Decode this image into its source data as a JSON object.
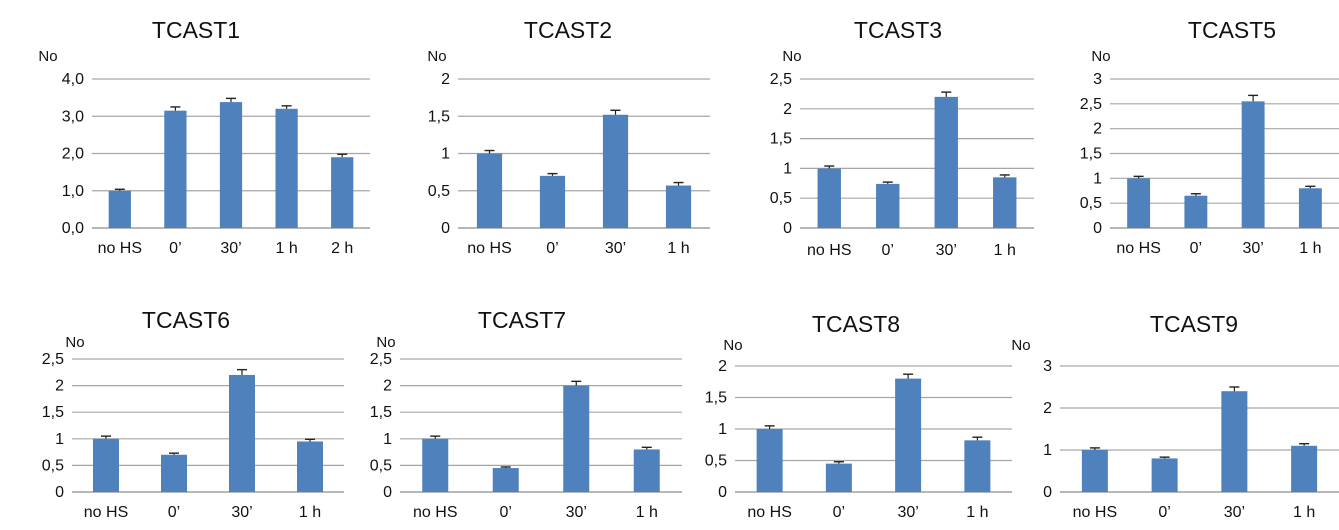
{
  "chart_data": [
    {
      "type": "bar",
      "title": "TCAST1",
      "ylabel": "No",
      "categories": [
        "no HS",
        "0’",
        "30’",
        "1 h",
        "2 h"
      ],
      "values": [
        1.0,
        3.15,
        3.38,
        3.2,
        1.9
      ],
      "errors": [
        0.04,
        0.1,
        0.1,
        0.08,
        0.08
      ],
      "ylim": [
        0,
        4
      ],
      "yticks": [
        "0,0",
        "1,0",
        "2,0",
        "3,0",
        "4,0"
      ],
      "grid": true,
      "color": "#4f81bd"
    },
    {
      "type": "bar",
      "title": "TCAST2",
      "ylabel": "No",
      "categories": [
        "no HS",
        "0’",
        "30’",
        "1 h"
      ],
      "values": [
        1.0,
        0.7,
        1.52,
        0.57
      ],
      "errors": [
        0.04,
        0.03,
        0.06,
        0.04
      ],
      "ylim": [
        0,
        2
      ],
      "yticks": [
        "0",
        "0,5",
        "1",
        "1,5",
        "2"
      ],
      "grid": true,
      "color": "#4f81bd"
    },
    {
      "type": "bar",
      "title": "TCAST3",
      "ylabel": "No",
      "categories": [
        "no HS",
        "0’",
        "30’",
        "1 h"
      ],
      "values": [
        1.0,
        0.74,
        2.2,
        0.85
      ],
      "errors": [
        0.04,
        0.03,
        0.08,
        0.04
      ],
      "ylim": [
        0,
        2.5
      ],
      "yticks": [
        "0",
        "0,5",
        "1",
        "1,5",
        "2",
        "2,5"
      ],
      "grid": true,
      "color": "#4f81bd"
    },
    {
      "type": "bar",
      "title": "TCAST5",
      "ylabel": "No",
      "categories": [
        "no HS",
        "0’",
        "30’",
        "1 h"
      ],
      "values": [
        1.0,
        0.65,
        2.55,
        0.8
      ],
      "errors": [
        0.04,
        0.04,
        0.12,
        0.04
      ],
      "ylim": [
        0,
        3
      ],
      "yticks": [
        "0",
        "0,5",
        "1",
        "1,5",
        "2",
        "2,5",
        "3"
      ],
      "grid": true,
      "color": "#4f81bd"
    },
    {
      "type": "bar",
      "title": "TCAST6",
      "ylabel": "No",
      "categories": [
        "no HS",
        "0’",
        "30’",
        "1 h"
      ],
      "values": [
        1.0,
        0.7,
        2.2,
        0.95
      ],
      "errors": [
        0.05,
        0.03,
        0.1,
        0.04
      ],
      "ylim": [
        0,
        2.5
      ],
      "yticks": [
        "0",
        "0,5",
        "1",
        "1,5",
        "2",
        "2,5"
      ],
      "grid": true,
      "color": "#4f81bd"
    },
    {
      "type": "bar",
      "title": "TCAST7",
      "ylabel": "No",
      "categories": [
        "no HS",
        "0’",
        "30’",
        "1 h"
      ],
      "values": [
        1.0,
        0.45,
        2.0,
        0.8
      ],
      "errors": [
        0.05,
        0.02,
        0.08,
        0.04
      ],
      "ylim": [
        0,
        2.5
      ],
      "yticks": [
        "0",
        "0,5",
        "1",
        "1,5",
        "2",
        "2,5"
      ],
      "grid": true,
      "color": "#4f81bd"
    },
    {
      "type": "bar",
      "title": "TCAST8",
      "ylabel": "No",
      "categories": [
        "no HS",
        "0’",
        "30’",
        "1 h"
      ],
      "values": [
        1.0,
        0.45,
        1.8,
        0.82
      ],
      "errors": [
        0.05,
        0.03,
        0.07,
        0.05
      ],
      "ylim": [
        0,
        2
      ],
      "yticks": [
        "0",
        "0,5",
        "1",
        "1,5",
        "2"
      ],
      "grid": true,
      "color": "#4f81bd"
    },
    {
      "type": "bar",
      "title": "TCAST9",
      "ylabel": "No",
      "categories": [
        "no HS",
        "0’",
        "30’",
        "1 h"
      ],
      "values": [
        1.0,
        0.8,
        2.4,
        1.1
      ],
      "errors": [
        0.05,
        0.03,
        0.1,
        0.05
      ],
      "ylim": [
        0,
        3
      ],
      "yticks": [
        "0",
        "1",
        "2",
        "3"
      ],
      "grid": true,
      "color": "#4f81bd"
    }
  ]
}
